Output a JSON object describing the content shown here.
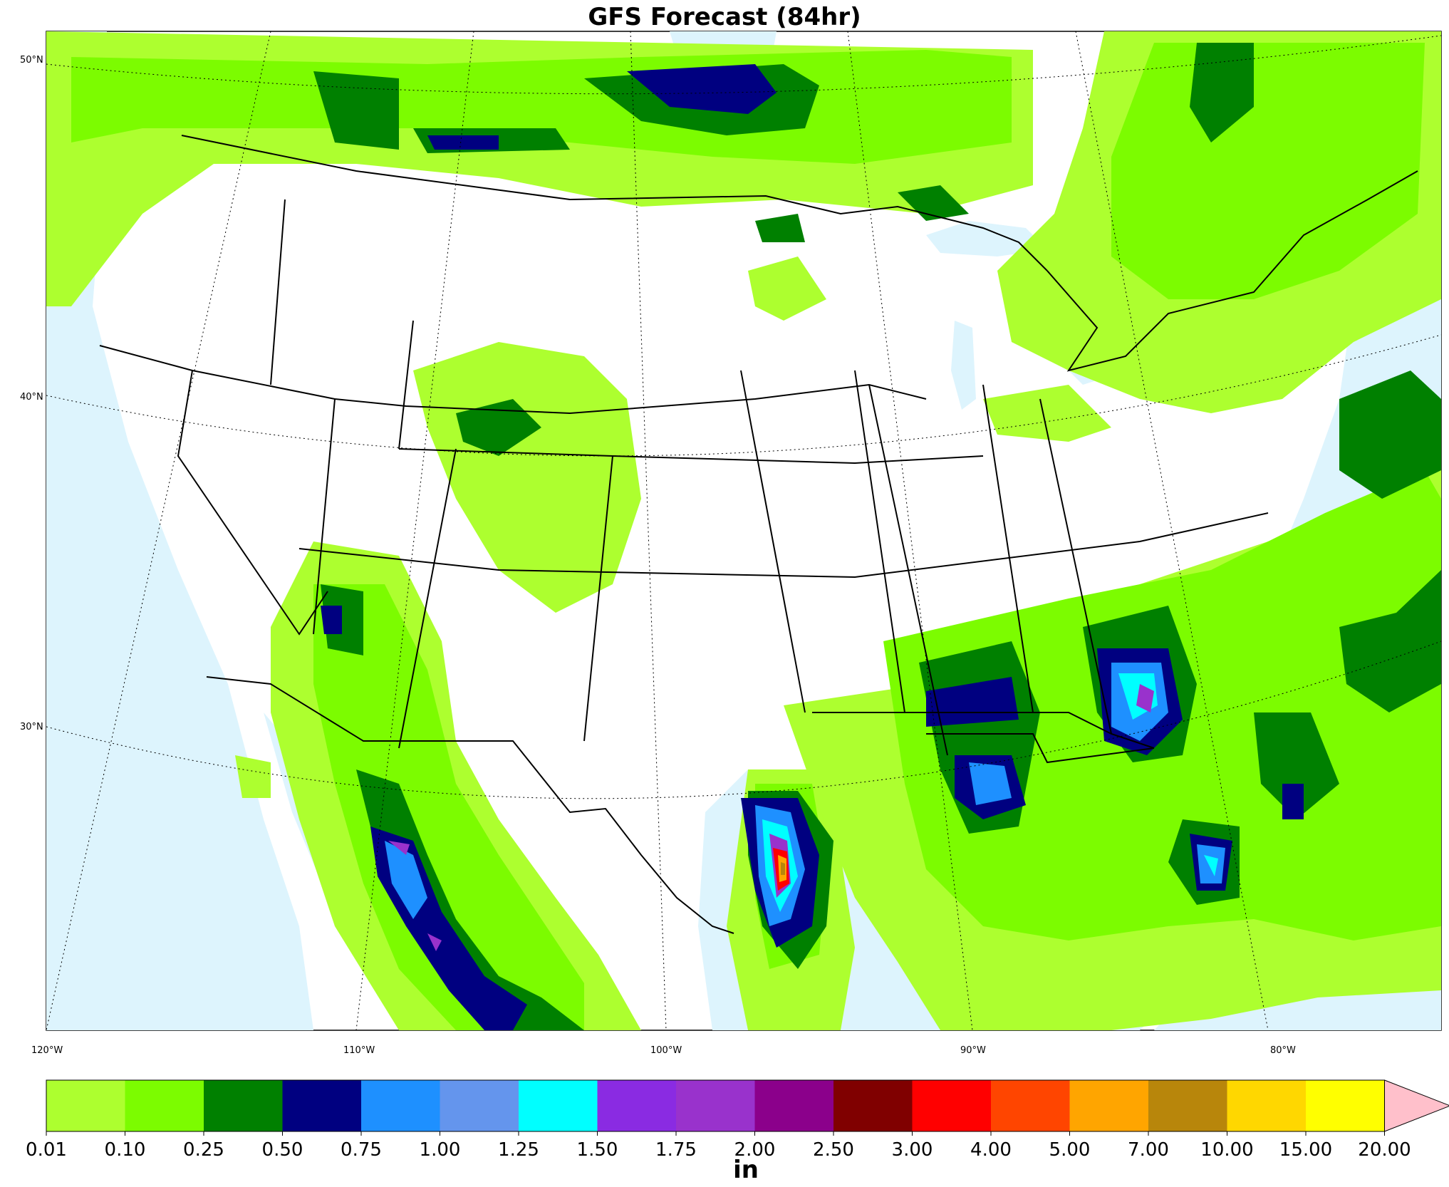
{
  "title": "GFS Forecast (84hr)",
  "unit": "in",
  "lat_labels": [
    "50°N",
    "40°N",
    "30°N"
  ],
  "lon_labels": [
    "120°W",
    "110°W",
    "100°W",
    "90°W",
    "80°W"
  ],
  "colorbar": {
    "levels": [
      "0.01",
      "0.10",
      "0.25",
      "0.50",
      "0.75",
      "1.00",
      "1.25",
      "1.50",
      "1.75",
      "2.00",
      "2.50",
      "3.00",
      "4.00",
      "5.00",
      "7.00",
      "10.00",
      "15.00",
      "20.00"
    ],
    "colors": [
      "#adff2f",
      "#7cfc00",
      "#008000",
      "#000080",
      "#1e90ff",
      "#6495ed",
      "#00ffff",
      "#8a2be2",
      "#9932cc",
      "#8b008b",
      "#800000",
      "#ff0000",
      "#ff4500",
      "#ffa500",
      "#b8860b",
      "#ffd700",
      "#ffff00"
    ],
    "extend_color": "#ffc0cb"
  },
  "colors": {
    "ocean": "#ddf4fd",
    "land": "#ffffff",
    "border": "#000000"
  }
}
